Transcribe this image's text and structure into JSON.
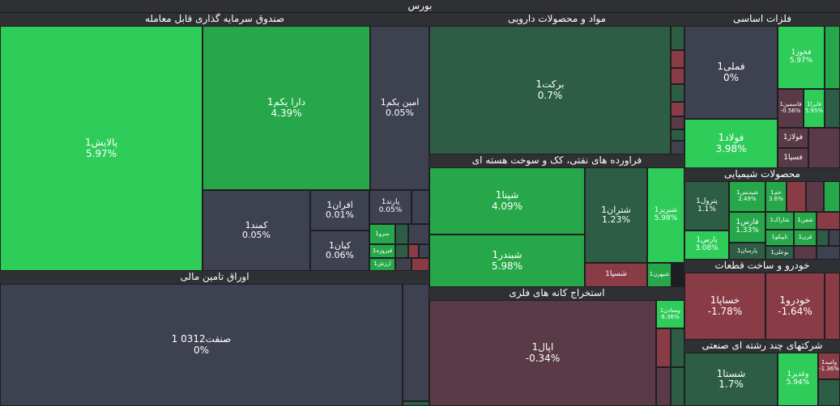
{
  "title": "بورس",
  "colors": {
    "green_strong": "#2ecc58",
    "green_mid": "#26a84a",
    "green_dark": "#2d5e45",
    "neutral": "#3e4250",
    "red_light": "#8a3c46",
    "red_dark": "#5a3a46"
  },
  "sectors": [
    {
      "name": "صندوق سرمایه گذاری قابل معامله"
    },
    {
      "name": "اوراق تامین مالی"
    },
    {
      "name": "مواد و محصولات دارویی"
    },
    {
      "name": "فراورده های نفتی، کک و سوخت هسته ای"
    },
    {
      "name": "استخراج کانه های فلزی"
    },
    {
      "name": "فلزات اساسی"
    },
    {
      "name": "محصولات شیمیایی"
    },
    {
      "name": "خودرو و ساخت قطعات"
    },
    {
      "name": "شرکتهای چند رشته ای صنعتی"
    }
  ],
  "tiles": [
    {
      "name": "پالایش1",
      "pct": "5.97%"
    },
    {
      "name": "دارا یکم1",
      "pct": "4.39%"
    },
    {
      "name": "امین یکم1",
      "pct": "0.05%"
    },
    {
      "name": "کمند1",
      "pct": "0.05%"
    },
    {
      "name": "افران1",
      "pct": "0.01%"
    },
    {
      "name": "کیان1",
      "pct": "0.06%"
    },
    {
      "name": "پارند1",
      "pct": "0.05%"
    },
    {
      "name": "سرو1",
      "pct": ""
    },
    {
      "name": "فیروزه1",
      "pct": ""
    },
    {
      "name": "ارزش1",
      "pct": ""
    },
    {
      "name": "صنفت0312 1",
      "pct": "0%"
    },
    {
      "name": "برکت1",
      "pct": "0.7%"
    },
    {
      "name": "شپنا1",
      "pct": "4.09%"
    },
    {
      "name": "شتران1",
      "pct": "1.23%"
    },
    {
      "name": "شبریز1",
      "pct": "5.98%"
    },
    {
      "name": "شبندر1",
      "pct": "5.98%"
    },
    {
      "name": "شسپا1",
      "pct": ""
    },
    {
      "name": "شبهرن1",
      "pct": ""
    },
    {
      "name": "اپال1",
      "pct": "-0.34%"
    },
    {
      "name": "ومعادن1",
      "pct": "6.36%"
    },
    {
      "name": "فملی1",
      "pct": "0%"
    },
    {
      "name": "فخوز1",
      "pct": "5.97%"
    },
    {
      "name": "فاسمین1",
      "pct": "-0.56%"
    },
    {
      "name": "فایرا1",
      "pct": "5.95%"
    },
    {
      "name": "فولاد1",
      "pct": "3.98%"
    },
    {
      "name": "فولاژ1",
      "pct": ""
    },
    {
      "name": "فسپا1",
      "pct": ""
    },
    {
      "name": "پترول1",
      "pct": "1.1%"
    },
    {
      "name": "شپدیس1",
      "pct": "2.49%"
    },
    {
      "name": "جم1",
      "pct": "3.6%"
    },
    {
      "name": "فارس1",
      "pct": "1.33%"
    },
    {
      "name": "شاراک1",
      "pct": ""
    },
    {
      "name": "شفن1",
      "pct": ""
    },
    {
      "name": "پارس1",
      "pct": "3.08%"
    },
    {
      "name": "تاپیکو1",
      "pct": ""
    },
    {
      "name": "قرن1",
      "pct": ""
    },
    {
      "name": "پارسان1",
      "pct": ""
    },
    {
      "name": "بوعلی1",
      "pct": ""
    },
    {
      "name": "خساپا1",
      "pct": "-1.78%"
    },
    {
      "name": "خودرو1",
      "pct": "-1.64%"
    },
    {
      "name": "شستا1",
      "pct": "1.7%"
    },
    {
      "name": "وغدیر1",
      "pct": "5.94%"
    },
    {
      "name": "وامید1",
      "pct": "-1.36%"
    }
  ]
}
